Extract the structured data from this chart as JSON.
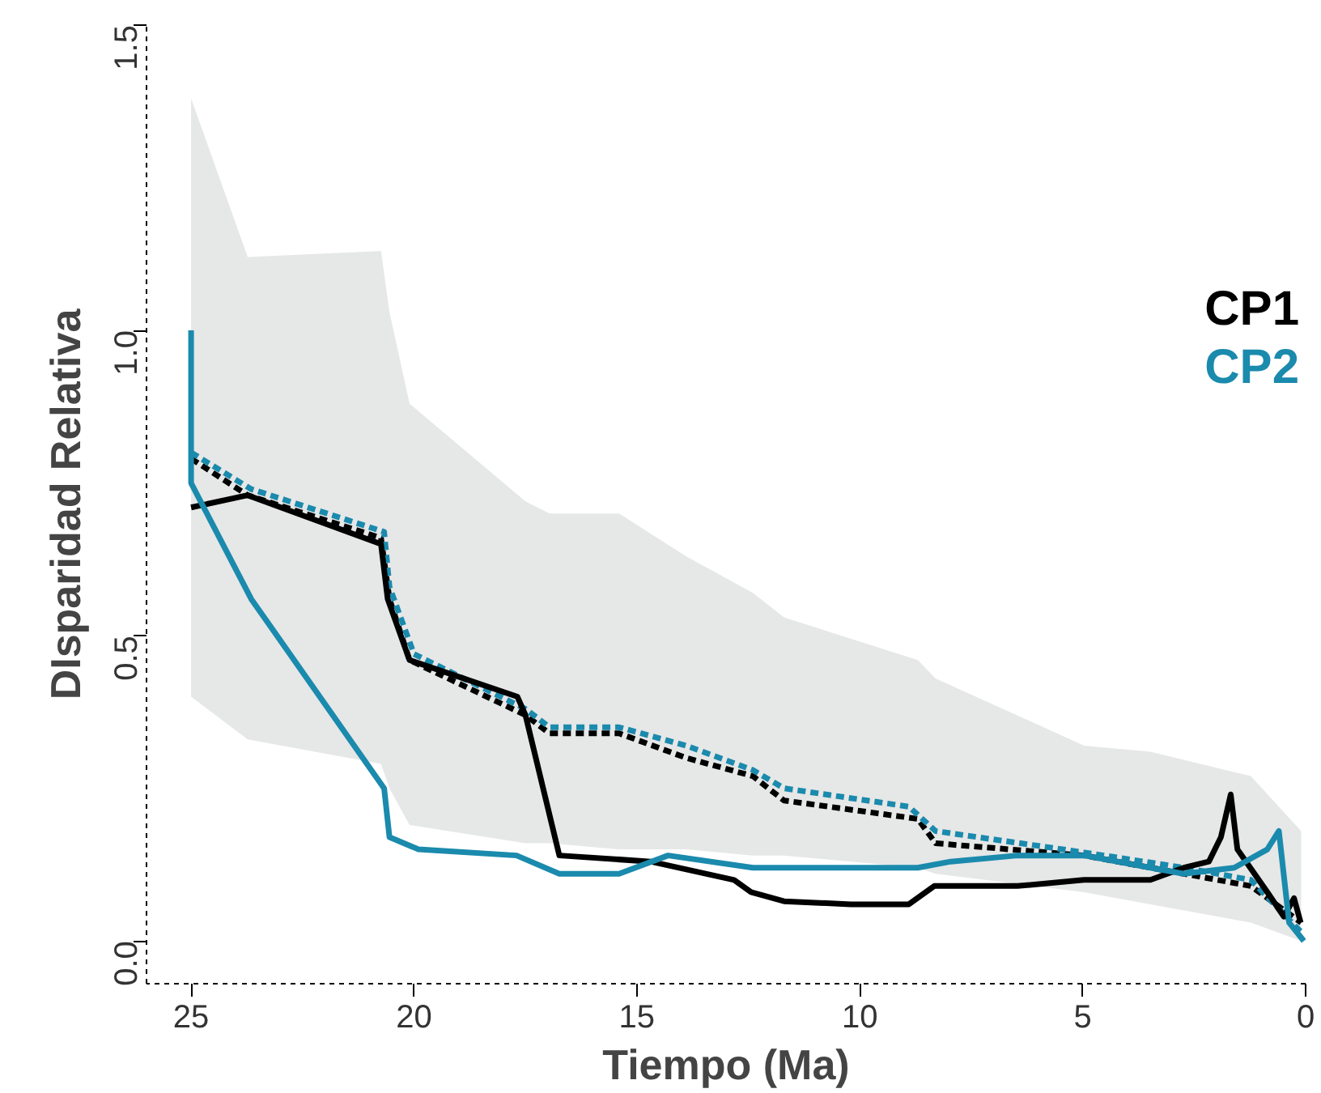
{
  "chart_data": {
    "type": "line",
    "xlabel": "Tiempo (Ma)",
    "ylabel": "DIsparidad Relativa",
    "xlim": [
      26,
      0
    ],
    "ylim": [
      -0.07,
      1.5
    ],
    "xticks": [
      25,
      20,
      15,
      10,
      5,
      0
    ],
    "yticks": [
      {
        "value": 0,
        "label": "0.0"
      },
      0.5,
      {
        "value": 1,
        "label": "1.0"
      },
      1.5
    ],
    "grid": false,
    "legend": "right",
    "marker": "none",
    "series": [
      {
        "name": null,
        "color": "#e6e7e7",
        "type": "area",
        "x": [
          25,
          23.73,
          20.74,
          20.55,
          20.1,
          17.5,
          16.96,
          15.4,
          13.9,
          12.4,
          11.7,
          8.7,
          8.3,
          4.97,
          3.48,
          1.23,
          0.1
        ],
        "values": [
          null,
          null,
          null,
          null,
          null,
          null,
          null,
          null,
          null,
          null,
          null,
          null,
          null,
          null,
          null,
          null,
          null
        ],
        "lower": [
          0.4,
          0.33,
          0.29,
          0.25,
          0.19,
          0.16,
          0.16,
          0.15,
          0.15,
          0.14,
          0.14,
          0.12,
          0.11,
          0.08,
          0.06,
          0.03,
          0.0
        ],
        "upper": [
          1.38,
          1.12,
          1.13,
          1.03,
          0.88,
          0.72,
          0.7,
          0.7,
          0.63,
          0.57,
          0.53,
          0.46,
          0.43,
          0.32,
          0.31,
          0.27,
          0.18
        ]
      },
      {
        "name": null,
        "color": "#000000",
        "line_style": "dashed",
        "x": [
          25,
          23.73,
          20.74,
          20.55,
          20.1,
          17.5,
          16.96,
          15.4,
          13.9,
          12.4,
          11.7,
          8.7,
          8.3,
          4.97,
          3.48,
          1.23,
          0.1
        ],
        "values": [
          0.79,
          0.73,
          0.66,
          0.56,
          0.46,
          0.37,
          0.34,
          0.34,
          0.3,
          0.27,
          0.23,
          0.2,
          0.16,
          0.14,
          0.12,
          0.09,
          0.03
        ]
      },
      {
        "name": null,
        "color": "#1a8aad",
        "line_style": "dashed",
        "x": [
          25,
          23.65,
          20.67,
          20.55,
          20.0,
          17.5,
          16.96,
          15.4,
          13.9,
          12.4,
          11.7,
          8.9,
          8.3,
          4.97,
          2.73,
          1.23,
          0.04
        ],
        "values": [
          0.8,
          0.74,
          0.67,
          0.58,
          0.47,
          0.38,
          0.35,
          0.35,
          0.32,
          0.28,
          0.25,
          0.22,
          0.18,
          0.145,
          0.12,
          0.1,
          0.01
        ]
      },
      {
        "name": "CP1",
        "color": "#000000",
        "line_style": "solid",
        "x": [
          25,
          23.73,
          20.74,
          20.59,
          20.1,
          17.68,
          17.5,
          16.74,
          14.69,
          12.82,
          12.44,
          11.7,
          10.2,
          8.9,
          8.33,
          6.46,
          4.97,
          3.48,
          2.73,
          2.17,
          1.9,
          1.68,
          1.53,
          0.86,
          0.49,
          0.26,
          0.11
        ],
        "values": [
          0.71,
          0.73,
          0.65,
          0.56,
          0.46,
          0.4,
          0.37,
          0.14,
          0.13,
          0.1,
          0.08,
          0.065,
          0.06,
          0.06,
          0.09,
          0.09,
          0.1,
          0.1,
          0.12,
          0.13,
          0.17,
          0.24,
          0.15,
          0.08,
          0.04,
          0.07,
          0.03
        ]
      },
      {
        "name": "CP2",
        "color": "#1a8aad",
        "line_style": "solid",
        "x": [
          25,
          25,
          23.65,
          20.67,
          20.55,
          19.9,
          17.7,
          16.74,
          15.4,
          14.3,
          12.4,
          9.8,
          8.7,
          7.96,
          6.46,
          4.97,
          3.48,
          2.73,
          1.6,
          0.86,
          0.6,
          0.37,
          0.04
        ],
        "values": [
          1.0,
          0.75,
          0.56,
          0.25,
          0.17,
          0.15,
          0.14,
          0.11,
          0.11,
          0.14,
          0.12,
          0.12,
          0.12,
          0.13,
          0.14,
          0.14,
          0.12,
          0.11,
          0.12,
          0.15,
          0.18,
          0.03,
          0.0
        ]
      }
    ]
  }
}
